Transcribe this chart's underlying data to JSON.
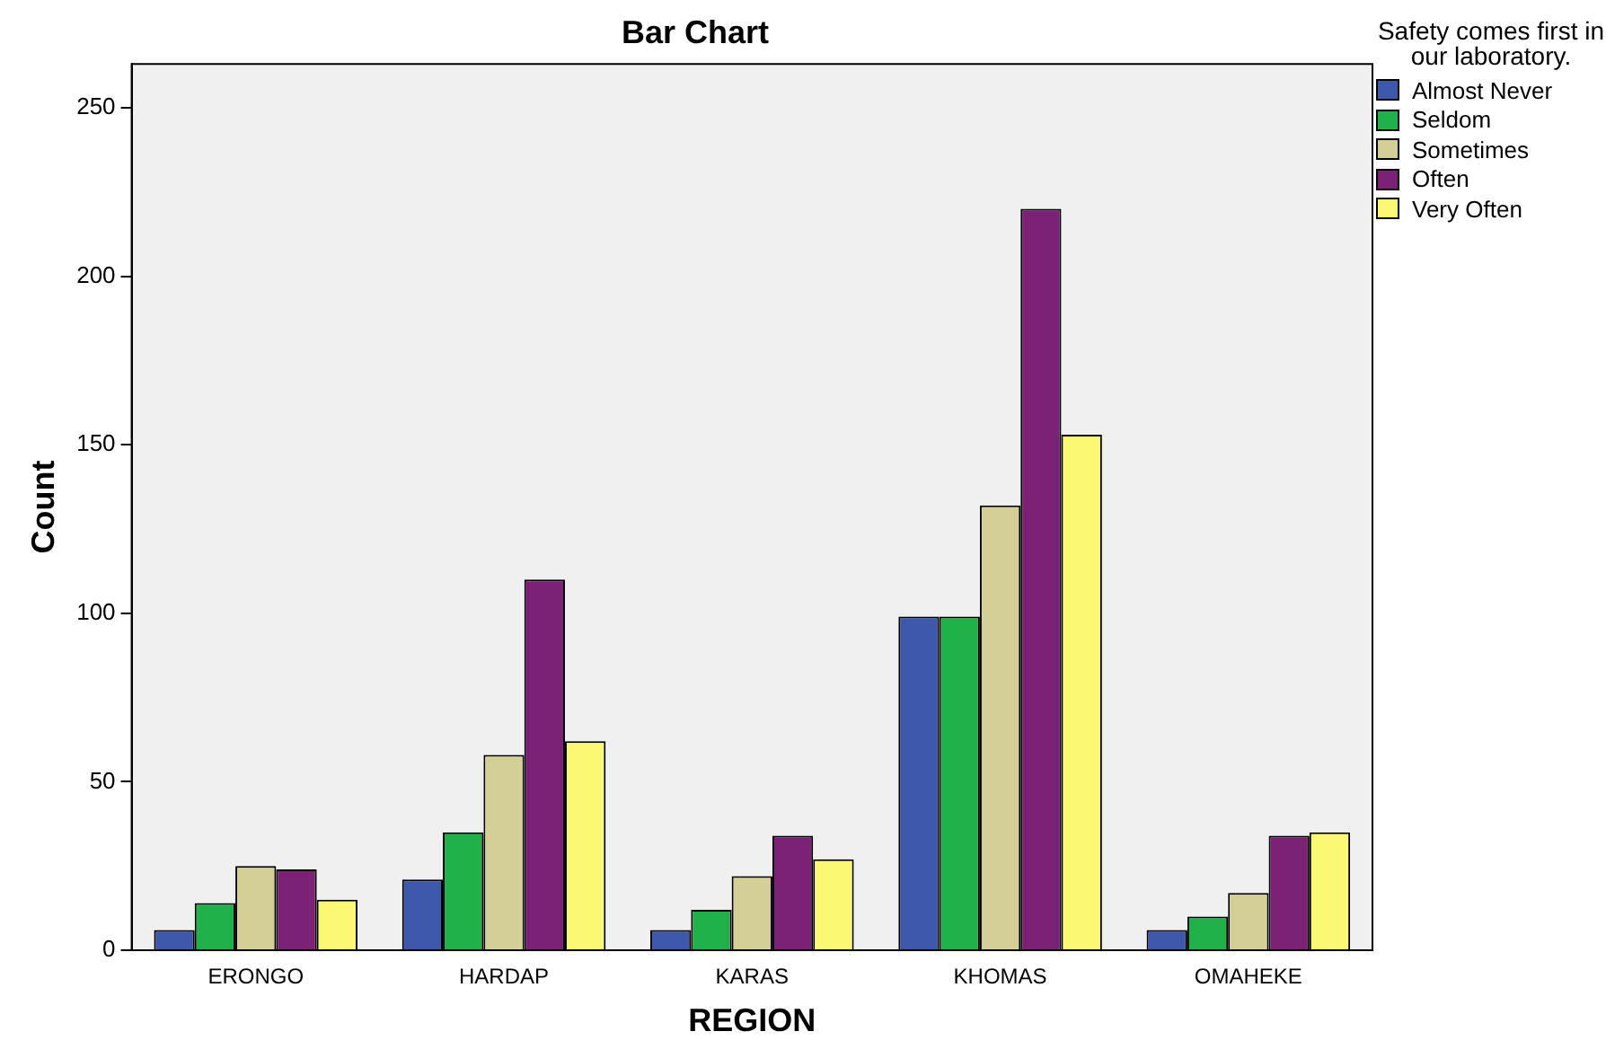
{
  "chart_data": {
    "type": "bar",
    "title": "Bar Chart",
    "xlabel": "REGION",
    "ylabel": "Count",
    "legend_title": "Safety comes first in our laboratory.",
    "categories": [
      "ERONGO",
      "HARDAP",
      "KARAS",
      "KHOMAS",
      "OMAHEKE"
    ],
    "series": [
      {
        "name": "Almost Never",
        "color": "#3e58ac",
        "values": [
          6,
          21,
          6,
          99,
          6
        ]
      },
      {
        "name": "Seldom",
        "color": "#21b14a",
        "values": [
          14,
          35,
          12,
          99,
          10
        ]
      },
      {
        "name": "Sometimes",
        "color": "#d4ce97",
        "values": [
          25,
          58,
          22,
          132,
          17
        ]
      },
      {
        "name": "Often",
        "color": "#7b2176",
        "values": [
          24,
          110,
          34,
          220,
          34
        ]
      },
      {
        "name": "Very Often",
        "color": "#fbf873",
        "values": [
          15,
          62,
          27,
          153,
          35
        ]
      }
    ],
    "ylim": [
      0,
      263
    ],
    "yticks": [
      0,
      50,
      100,
      150,
      200,
      250
    ],
    "grid": false,
    "legend": "right"
  }
}
